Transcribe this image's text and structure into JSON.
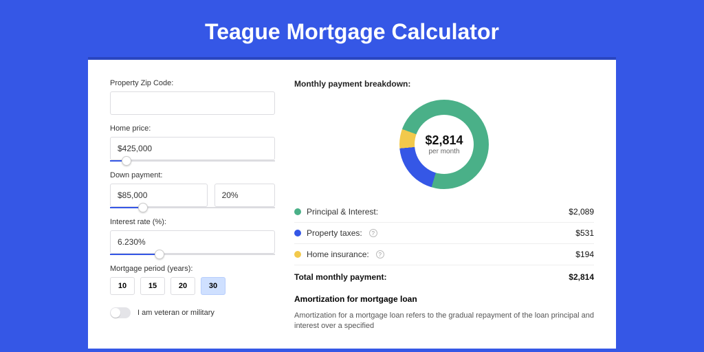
{
  "page": {
    "title": "Teague Mortgage Calculator",
    "colors": {
      "bg": "#3557e6",
      "accent": "#3557e6"
    }
  },
  "form": {
    "zip": {
      "label": "Property Zip Code:",
      "value": ""
    },
    "home_price": {
      "label": "Home price:",
      "value": "$425,000",
      "slider_pct": 10
    },
    "down_payment": {
      "label": "Down payment:",
      "amount": "$85,000",
      "percent": "20%",
      "slider_pct": 20
    },
    "interest_rate": {
      "label": "Interest rate (%):",
      "value": "6.230%",
      "slider_pct": 30
    },
    "mortgage_period": {
      "label": "Mortgage period (years):",
      "options": [
        "10",
        "15",
        "20",
        "30"
      ],
      "selected": "30"
    },
    "veteran": {
      "label": "I am veteran or military",
      "checked": false
    }
  },
  "breakdown": {
    "title": "Monthly payment breakdown:",
    "center_amount": "$2,814",
    "center_sub": "per month",
    "donut": {
      "size": 130,
      "thickness": 22,
      "segments": [
        {
          "label": "Principal & Interest:",
          "value": "$2,089",
          "pct": 74,
          "color": "#4ab088"
        },
        {
          "label": "Property taxes:",
          "value": "$531",
          "pct": 19,
          "color": "#3557e6",
          "info": true
        },
        {
          "label": "Home insurance:",
          "value": "$194",
          "pct": 7,
          "color": "#f2c94c",
          "info": true
        }
      ],
      "rotation": -70
    },
    "total_label": "Total monthly payment:",
    "total_value": "$2,814"
  },
  "amortization": {
    "title": "Amortization for mortgage loan",
    "text": "Amortization for a mortgage loan refers to the gradual repayment of the loan principal and interest over a specified"
  }
}
